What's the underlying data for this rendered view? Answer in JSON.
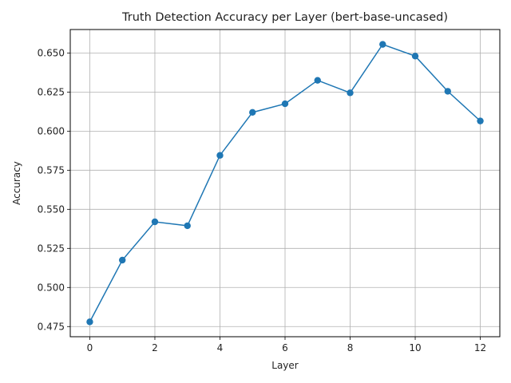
{
  "chart_data": {
    "type": "line",
    "title": "Truth Detection Accuracy per Layer (bert-base-uncased)",
    "xlabel": "Layer",
    "ylabel": "Accuracy",
    "xlim": [
      -0.6,
      12.6
    ],
    "ylim": [
      0.4685,
      0.665
    ],
    "xticks": [
      0,
      2,
      4,
      6,
      8,
      10,
      12
    ],
    "xtick_labels": [
      "0",
      "2",
      "4",
      "6",
      "8",
      "10",
      "12"
    ],
    "yticks": [
      0.475,
      0.5,
      0.525,
      0.55,
      0.575,
      0.6,
      0.625,
      0.65
    ],
    "ytick_labels": [
      "0.475",
      "0.500",
      "0.525",
      "0.550",
      "0.575",
      "0.600",
      "0.625",
      "0.650"
    ],
    "grid": true,
    "color": "#1f77b4",
    "series": [
      {
        "x": [
          0,
          1,
          2,
          3,
          4,
          5,
          6,
          7,
          8,
          9,
          10,
          11,
          12
        ],
        "values": [
          0.478,
          0.5175,
          0.542,
          0.5395,
          0.5845,
          0.612,
          0.6175,
          0.6325,
          0.6245,
          0.6555,
          0.648,
          0.6255,
          0.6065
        ]
      }
    ]
  }
}
